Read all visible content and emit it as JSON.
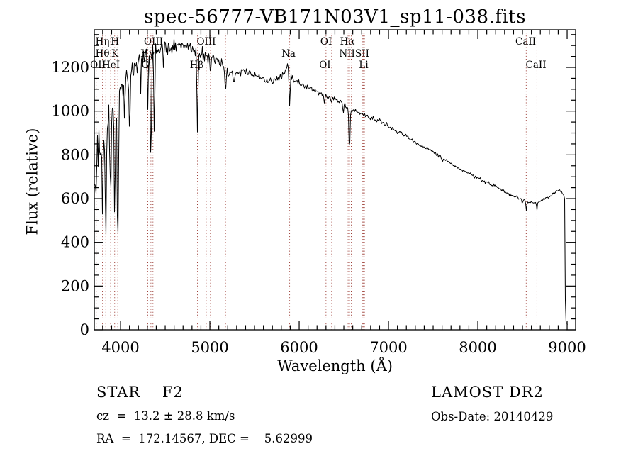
{
  "title": "spec-56777-VB171N03V1_sp11-038.fits",
  "footer": {
    "class_label": "STAR    F2",
    "survey": "LAMOST DR2",
    "cz": "cz  =  13.2 ± 28.8 km/s",
    "obs_date": "Obs-Date: 20140429",
    "ra_dec": "RA  =  172.14567, DEC =    5.62999"
  },
  "chart_data": {
    "type": "line",
    "title": "spec-56777-VB171N03V1_sp11-038.fits",
    "xlabel": "Wavelength (Å)",
    "ylabel": "Flux (relative)",
    "xlim": [
      3706,
      9095
    ],
    "ylim": [
      0,
      1372
    ],
    "x_ticks": [
      4000,
      5000,
      6000,
      7000,
      8000,
      9000
    ],
    "x_minor_step": 100,
    "y_ticks": [
      0,
      200,
      400,
      600,
      800,
      1000,
      1200
    ],
    "y_minor_step": 50,
    "grid": false,
    "trace_color": "#000000",
    "marker_color": "#9b3a32",
    "continuum_points": [
      [
        3706,
        700
      ],
      [
        3715,
        790
      ],
      [
        3722,
        730
      ],
      [
        3727,
        680
      ],
      [
        3734,
        820
      ],
      [
        3742,
        860
      ],
      [
        3752,
        800
      ],
      [
        3762,
        840
      ],
      [
        3775,
        880
      ],
      [
        3790,
        900
      ],
      [
        3810,
        930
      ],
      [
        3830,
        950
      ],
      [
        3850,
        970
      ],
      [
        3875,
        990
      ],
      [
        3900,
        1010
      ],
      [
        3925,
        1030
      ],
      [
        3950,
        1050
      ],
      [
        3975,
        1065
      ],
      [
        4000,
        1090
      ],
      [
        4040,
        1130
      ],
      [
        4080,
        1160
      ],
      [
        4120,
        1185
      ],
      [
        4170,
        1205
      ],
      [
        4220,
        1230
      ],
      [
        4270,
        1250
      ],
      [
        4330,
        1260
      ],
      [
        4400,
        1270
      ],
      [
        4470,
        1283
      ],
      [
        4540,
        1290
      ],
      [
        4610,
        1298
      ],
      [
        4680,
        1305
      ],
      [
        4740,
        1300
      ],
      [
        4800,
        1292
      ],
      [
        4860,
        1272
      ],
      [
        4920,
        1258
      ],
      [
        4980,
        1248
      ],
      [
        5040,
        1238
      ],
      [
        5100,
        1222
      ],
      [
        5160,
        1200
      ],
      [
        5210,
        1180
      ],
      [
        5260,
        1175
      ],
      [
        5320,
        1178
      ],
      [
        5390,
        1185
      ],
      [
        5450,
        1175
      ],
      [
        5510,
        1163
      ],
      [
        5570,
        1152
      ],
      [
        5630,
        1143
      ],
      [
        5690,
        1136
      ],
      [
        5750,
        1142
      ],
      [
        5810,
        1168
      ],
      [
        5855,
        1200
      ],
      [
        5880,
        1208
      ],
      [
        5910,
        1160
      ],
      [
        5950,
        1140
      ],
      [
        6000,
        1128
      ],
      [
        6060,
        1115
      ],
      [
        6120,
        1103
      ],
      [
        6180,
        1092
      ],
      [
        6240,
        1078
      ],
      [
        6300,
        1068
      ],
      [
        6360,
        1062
      ],
      [
        6420,
        1050
      ],
      [
        6480,
        1035
      ],
      [
        6530,
        1022
      ],
      [
        6580,
        1010
      ],
      [
        6640,
        998
      ],
      [
        6700,
        988
      ],
      [
        6760,
        977
      ],
      [
        6820,
        967
      ],
      [
        6880,
        957
      ],
      [
        6940,
        946
      ],
      [
        7000,
        932
      ],
      [
        7060,
        917
      ],
      [
        7120,
        902
      ],
      [
        7180,
        887
      ],
      [
        7240,
        872
      ],
      [
        7300,
        857
      ],
      [
        7360,
        843
      ],
      [
        7420,
        831
      ],
      [
        7480,
        817
      ],
      [
        7540,
        802
      ],
      [
        7600,
        787
      ],
      [
        7660,
        772
      ],
      [
        7720,
        757
      ],
      [
        7780,
        742
      ],
      [
        7840,
        727
      ],
      [
        7900,
        712
      ],
      [
        7960,
        701
      ],
      [
        8020,
        691
      ],
      [
        8080,
        677
      ],
      [
        8140,
        666
      ],
      [
        8200,
        656
      ],
      [
        8260,
        642
      ],
      [
        8320,
        627
      ],
      [
        8380,
        616
      ],
      [
        8440,
        606
      ],
      [
        8500,
        596
      ],
      [
        8560,
        587
      ],
      [
        8610,
        584
      ],
      [
        8660,
        581
      ],
      [
        8700,
        589
      ],
      [
        8740,
        596
      ],
      [
        8790,
        606
      ],
      [
        8840,
        622
      ],
      [
        8880,
        633
      ],
      [
        8915,
        640
      ],
      [
        8940,
        628
      ],
      [
        8960,
        615
      ],
      [
        8972,
        600
      ],
      [
        8978,
        180
      ],
      [
        8984,
        35
      ],
      [
        9000,
        28
      ],
      [
        9008,
        24
      ]
    ],
    "absorption_features": [
      [
        3727,
        620,
        1.6
      ],
      [
        3798,
        500,
        1.8
      ],
      [
        3835,
        335,
        2.0
      ],
      [
        3889,
        530,
        1.8
      ],
      [
        3934,
        465,
        1.8
      ],
      [
        3969,
        305,
        2.2
      ],
      [
        4045,
        930,
        1.4
      ],
      [
        4102,
        850,
        1.8
      ],
      [
        4226,
        1080,
        1.3
      ],
      [
        4305,
        1000,
        1.6
      ],
      [
        4340,
        680,
        1.9
      ],
      [
        4378,
        855,
        1.6
      ],
      [
        4481,
        1180,
        1.2
      ],
      [
        4861,
        900,
        1.9
      ],
      [
        5007,
        1140,
        1.3
      ],
      [
        5175,
        1085,
        2.4
      ],
      [
        5270,
        1120,
        1.6
      ],
      [
        5893,
        1015,
        2.0
      ],
      [
        6280,
        1032,
        1.6
      ],
      [
        6360,
        1035,
        1.3
      ],
      [
        6495,
        985,
        1.2
      ],
      [
        6563,
        770,
        1.8
      ],
      [
        7605,
        762,
        1.5
      ],
      [
        8498,
        575,
        1.5
      ],
      [
        8542,
        545,
        1.6
      ],
      [
        8662,
        552,
        1.6
      ]
    ],
    "noise_regions": [
      [
        3706,
        3770,
        165
      ],
      [
        3770,
        3990,
        115
      ],
      [
        3990,
        4150,
        52
      ],
      [
        4150,
        4480,
        40
      ],
      [
        4480,
        5010,
        36
      ],
      [
        5010,
        5420,
        26
      ],
      [
        5420,
        5905,
        19
      ],
      [
        5905,
        6555,
        15
      ],
      [
        6555,
        7200,
        11
      ],
      [
        7200,
        8200,
        8.5
      ],
      [
        8200,
        8965,
        6.5
      ],
      [
        8965,
        9008,
        3
      ]
    ],
    "marker_lines_wl": [
      3727,
      3798,
      3835,
      3889,
      3934,
      3969,
      4305,
      4340,
      4363,
      4861,
      4959,
      5007,
      5175,
      5893,
      6300,
      6364,
      6548,
      6563,
      6583,
      6708,
      6717,
      6731,
      8542,
      8662
    ],
    "marker_labels": [
      {
        "text": "Hη",
        "wl": 3798,
        "row": 0
      },
      {
        "text": "H",
        "wl": 3937,
        "row": 0
      },
      {
        "text": "OIII",
        "wl": 4369,
        "row": 0
      },
      {
        "text": "OIII",
        "wl": 4960,
        "row": 0
      },
      {
        "text": "OI",
        "wl": 6302,
        "row": 0
      },
      {
        "text": "Hα",
        "wl": 6540,
        "row": 0
      },
      {
        "text": "CaII",
        "wl": 8536,
        "row": 0
      },
      {
        "text": "Hθ",
        "wl": 3798,
        "row": 1
      },
      {
        "text": "K",
        "wl": 3937,
        "row": 1
      },
      {
        "text": "Hγ",
        "wl": 4302,
        "row": 1
      },
      {
        "text": "Na",
        "wl": 5881,
        "row": 1
      },
      {
        "text": "NII",
        "wl": 6536,
        "row": 1
      },
      {
        "text": "SII",
        "wl": 6706,
        "row": 1
      },
      {
        "text": "OII",
        "wl": 3746,
        "row": 2
      },
      {
        "text": "HeI",
        "wl": 3893,
        "row": 2
      },
      {
        "text": "G",
        "wl": 4278,
        "row": 2
      },
      {
        "text": "Hβ",
        "wl": 4853,
        "row": 2
      },
      {
        "text": "OI",
        "wl": 6289,
        "row": 2
      },
      {
        "text": "Li",
        "wl": 6722,
        "row": 2
      },
      {
        "text": "CaII",
        "wl": 8651,
        "row": 2
      }
    ]
  }
}
